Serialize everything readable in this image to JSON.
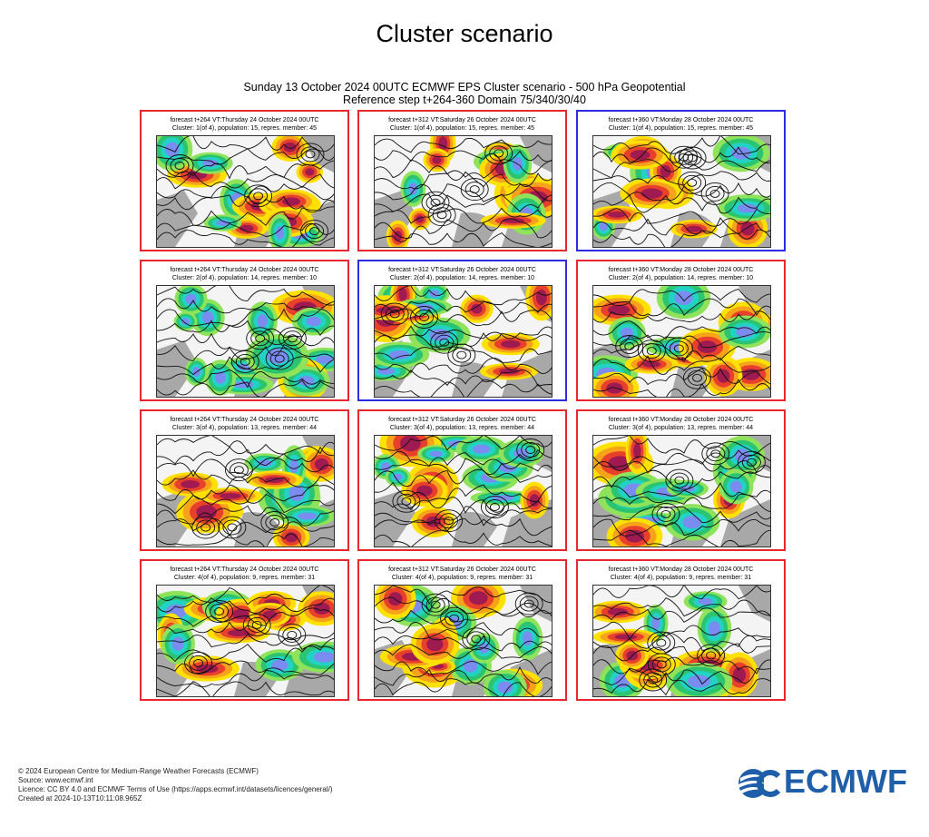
{
  "page": {
    "title": "Cluster scenario",
    "header_line1": "Sunday 13 October 2024 00UTC ECMWF EPS Cluster scenario - 500 hPa Geopotential",
    "header_line2": "Reference step t+264-360 Domain 75/340/30/40"
  },
  "chart_data": [
    {
      "type": "heatmap",
      "cluster": 1,
      "step": 264,
      "caption1": "forecast t+264 VT:Thursday 24 October 2024 00UTC",
      "caption2": "Cluster: 1(of 4), population: 15, repres. member: 45",
      "highlight": "none",
      "seed": 11
    },
    {
      "type": "heatmap",
      "cluster": 1,
      "step": 312,
      "caption1": "forecast t+312 VT:Saturday 26 October 2024 00UTC",
      "caption2": "Cluster: 1(of 4), population: 15, repres. member: 45",
      "highlight": "none",
      "seed": 12
    },
    {
      "type": "heatmap",
      "cluster": 1,
      "step": 360,
      "caption1": "forecast t+360 VT:Monday 28 October 2024 00UTC",
      "caption2": "Cluster: 1(of 4), population: 15, repres. member: 45",
      "highlight": "medoid",
      "seed": 13
    },
    {
      "type": "heatmap",
      "cluster": 2,
      "step": 264,
      "caption1": "forecast t+264 VT:Thursday 24 October 2024 00UTC",
      "caption2": "Cluster: 2(of 4), population: 14, repres. member: 10",
      "highlight": "none",
      "seed": 21
    },
    {
      "type": "heatmap",
      "cluster": 2,
      "step": 312,
      "caption1": "forecast t+312 VT:Saturday 26 October 2024 00UTC",
      "caption2": "Cluster: 2(of 4), population: 14, repres. member: 10",
      "highlight": "medoid",
      "seed": 22
    },
    {
      "type": "heatmap",
      "cluster": 2,
      "step": 360,
      "caption1": "forecast t+360 VT:Monday 28 October 2024 00UTC",
      "caption2": "Cluster: 2(of 4), population: 14, repres. member: 10",
      "highlight": "none",
      "seed": 23
    },
    {
      "type": "heatmap",
      "cluster": 3,
      "step": 264,
      "caption1": "forecast t+264 VT:Thursday 24 October 2024 00UTC",
      "caption2": "Cluster: 3(of 4), population: 13, repres. member: 44",
      "highlight": "none",
      "seed": 31
    },
    {
      "type": "heatmap",
      "cluster": 3,
      "step": 312,
      "caption1": "forecast t+312 VT:Saturday 26 October 2024 00UTC",
      "caption2": "Cluster: 3(of 4), population: 13, repres. member: 44",
      "highlight": "none",
      "seed": 32
    },
    {
      "type": "heatmap",
      "cluster": 3,
      "step": 360,
      "caption1": "forecast t+360 VT:Monday 28 October 2024 00UTC",
      "caption2": "Cluster: 3(of 4), population: 13, repres. member: 44",
      "highlight": "none",
      "seed": 33
    },
    {
      "type": "heatmap",
      "cluster": 4,
      "step": 264,
      "caption1": "forecast t+264 VT:Thursday 24 October 2024 00UTC",
      "caption2": "Cluster: 4(of 4), population: 9, repres. member: 31",
      "highlight": "none",
      "seed": 41
    },
    {
      "type": "heatmap",
      "cluster": 4,
      "step": 312,
      "caption1": "forecast t+312 VT:Saturday 26 October 2024 00UTC",
      "caption2": "Cluster: 4(of 4), population: 9, repres. member: 31",
      "highlight": "none",
      "seed": 42
    },
    {
      "type": "heatmap",
      "cluster": 4,
      "step": 360,
      "caption1": "forecast t+360 VT:Monday 28 October 2024 00UTC",
      "caption2": "Cluster: 4(of 4), population: 9, repres. member: 31",
      "highlight": "none",
      "seed": 43
    }
  ],
  "colors": {
    "border_default": "#e8262b",
    "border_medoid": "#2a2ee0",
    "anomaly_neg": [
      "#7b8cf0",
      "#22d3c5",
      "#2bc470",
      "#8fe35a"
    ],
    "anomaly_pos": [
      "#ffe100",
      "#f7a21b",
      "#e8402a",
      "#9e1a50"
    ],
    "land": "#9a9a9a",
    "ecmwf_blue": "#1f5ea8"
  },
  "footer": {
    "line1": "© 2024 European Centre for Medium-Range Weather Forecasts (ECMWF)",
    "line2": "Source: www.ecmwf.int",
    "line3": "Licence: CC BY 4.0 and ECMWF Terms of Use (https://apps.ecmwf.int/datasets/licences/general/)",
    "line4": "Created at 2024-10-13T10:11:08.965Z"
  },
  "logo": {
    "text": "ECMWF"
  }
}
